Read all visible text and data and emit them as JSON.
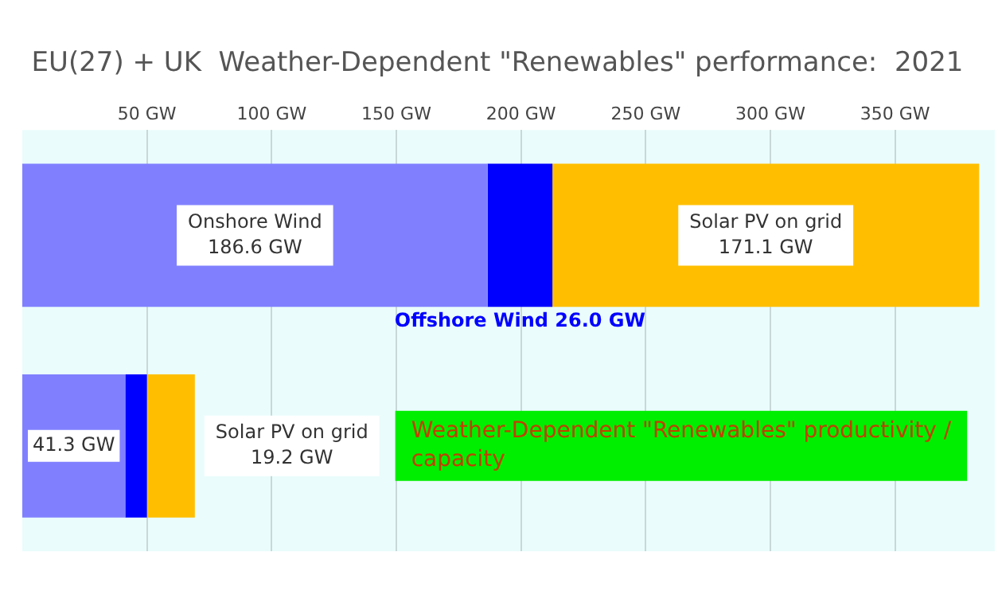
{
  "chart_data": {
    "type": "bar",
    "orientation": "horizontal",
    "stacked": true,
    "title": "EU(27) + UK  Weather-Dependent \"Renewables\" performance:  2021",
    "categories": [
      null,
      null
    ],
    "series": [
      {
        "name": "Onshore Wind",
        "color": "#8080ff",
        "values": [
          186.6,
          41.3
        ],
        "value_labels": [
          "186.6 GW",
          "41.3 GW"
        ]
      },
      {
        "name": "Offshore Wind",
        "color": "#0000ff",
        "values": [
          26.0,
          8.7
        ],
        "value_labels": [
          "26.0 GW",
          null
        ]
      },
      {
        "name": "Solar PV on grid",
        "color": "#ffbf00",
        "values": [
          171.1,
          19.2
        ],
        "value_labels": [
          "171.1 GW",
          "19.2 GW"
        ]
      }
    ],
    "xlim": [
      0,
      390
    ],
    "xticks": [
      {
        "value": 50,
        "label": "50 GW"
      },
      {
        "value": 100,
        "label": "100 GW"
      },
      {
        "value": 150,
        "label": "150 GW"
      },
      {
        "value": 200,
        "label": "200 GW"
      },
      {
        "value": 250,
        "label": "250 GW"
      },
      {
        "value": 300,
        "label": "300 GW"
      },
      {
        "value": 350,
        "label": "350 GW"
      }
    ],
    "grid": "x",
    "legend": false,
    "annotations": [
      "Weather-Dependent \"Renewables\" productivity / capacity"
    ]
  }
}
